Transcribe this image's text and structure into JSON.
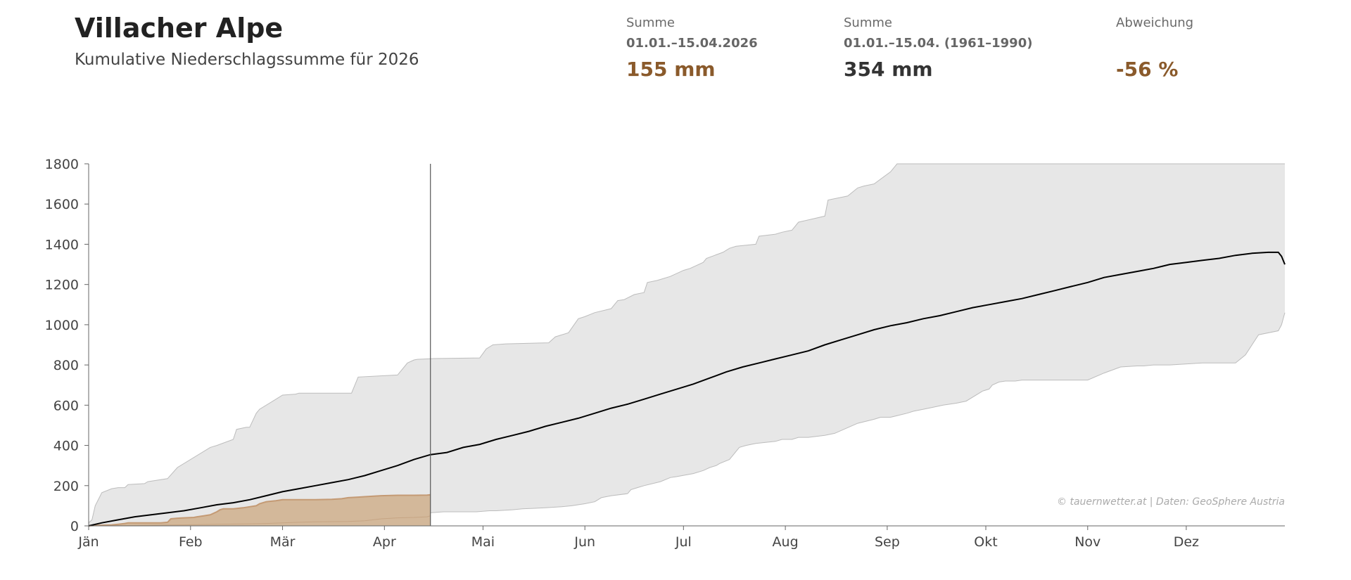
{
  "header": {
    "title": "Villacher Alpe",
    "subtitle": "Kumulative Niederschlagssumme für 2026"
  },
  "stats": {
    "current": {
      "label": "Summe",
      "period": "01.01.–15.04.2026",
      "value": "155 mm",
      "color": "#8a5a2b"
    },
    "normal": {
      "label": "Summe",
      "period": "01.01.–15.04. (1961–1990)",
      "value": "354 mm",
      "color": "#333333"
    },
    "deviation": {
      "label": "Abweichung",
      "period": "",
      "value": "-56 %",
      "color": "#8a5a2b"
    }
  },
  "chart_data": {
    "type": "area",
    "title": "Kumulative Niederschlagssumme für 2026",
    "xlabel": "",
    "ylabel": "",
    "x_unit": "day of year",
    "xlim": [
      1,
      365
    ],
    "ylim": [
      0,
      1800
    ],
    "yticks": [
      0,
      200,
      400,
      600,
      800,
      1000,
      1200,
      1400,
      1600,
      1800
    ],
    "ytick_labels": [
      "0",
      "200",
      "400",
      "600",
      "800",
      "1000",
      "1200",
      "1400",
      "1600",
      "1800"
    ],
    "xtick_days": [
      1,
      32,
      60,
      91,
      121,
      152,
      182,
      213,
      244,
      274,
      305,
      335
    ],
    "xtick_labels": [
      "Jän",
      "Feb",
      "Mär",
      "Apr",
      "Mai",
      "Jun",
      "Jul",
      "Aug",
      "Sep",
      "Okt",
      "Nov",
      "Dez"
    ],
    "current_day": 105,
    "credit": "© tauernwetter.at | Daten: GeoSphere Austria",
    "colors": {
      "range_fill": "#e7e7e7",
      "range_edge": "#bcbcbc",
      "mean_line": "#000000",
      "current_fill": "#d3b89a",
      "current_line": "#c49a74",
      "current_low": "#c6a584",
      "axis": "#666666",
      "marker": "#555555"
    },
    "series": [
      {
        "name": "Maximum 1961–1990",
        "role": "max",
        "x": [
          1,
          2,
          3,
          5,
          8,
          10,
          12,
          13,
          18,
          19,
          25,
          28,
          38,
          40,
          45,
          46,
          49,
          50,
          52,
          53,
          58,
          60,
          64,
          65,
          75,
          81,
          83,
          95,
          96,
          97,
          98,
          100,
          101,
          104,
          106,
          120,
          122,
          124,
          128,
          141,
          143,
          147,
          150,
          152,
          155,
          160,
          162,
          164,
          167,
          170,
          171,
          174,
          178,
          182,
          184,
          188,
          189,
          194,
          196,
          198,
          204,
          205,
          210,
          212,
          215,
          217,
          225,
          226,
          232,
          235,
          237,
          240,
          245,
          247,
          252,
          253,
          255,
          258,
          263,
          268,
          270,
          365
        ],
        "values": [
          15,
          30,
          100,
          165,
          185,
          190,
          190,
          205,
          210,
          220,
          235,
          290,
          390,
          400,
          430,
          480,
          490,
          490,
          560,
          580,
          630,
          650,
          655,
          660,
          660,
          660,
          740,
          750,
          770,
          790,
          810,
          825,
          828,
          830,
          832,
          835,
          880,
          900,
          905,
          910,
          940,
          960,
          1030,
          1040,
          1060,
          1080,
          1120,
          1125,
          1150,
          1160,
          1210,
          1220,
          1240,
          1270,
          1280,
          1310,
          1330,
          1360,
          1380,
          1390,
          1400,
          1440,
          1450,
          1460,
          1470,
          1510,
          1540,
          1620,
          1640,
          1680,
          1690,
          1700,
          1760,
          1800,
          1800,
          1800,
          1800,
          1800,
          1800,
          1800,
          1800,
          1800
        ]
      },
      {
        "name": "Minimum 1961–1990",
        "role": "min",
        "x": [
          1,
          70,
          80,
          82,
          85,
          90,
          95,
          99,
          101,
          102,
          105,
          109,
          119,
          123,
          125,
          130,
          133,
          140,
          145,
          148,
          152,
          155,
          157,
          160,
          165,
          166,
          168,
          170,
          175,
          178,
          180,
          185,
          188,
          190,
          192,
          193,
          196,
          199,
          201,
          204,
          210,
          212,
          215,
          217,
          220,
          225,
          228,
          235,
          240,
          242,
          245,
          250,
          252,
          255,
          258,
          261,
          265,
          268,
          272,
          273,
          275,
          276,
          278,
          280,
          283,
          285,
          290,
          295,
          302,
          305,
          310,
          315,
          320,
          322,
          325,
          330,
          340,
          350,
          353,
          355,
          357,
          363,
          364,
          365
        ],
        "values": [
          0,
          12,
          15,
          30,
          40,
          40,
          40,
          40,
          50,
          55,
          65,
          70,
          70,
          75,
          75,
          80,
          85,
          90,
          95,
          100,
          110,
          120,
          140,
          150,
          160,
          180,
          190,
          200,
          220,
          240,
          245,
          260,
          275,
          290,
          300,
          310,
          330,
          390,
          400,
          410,
          420,
          430,
          430,
          440,
          440,
          450,
          460,
          510,
          530,
          540,
          540,
          560,
          570,
          580,
          590,
          600,
          610,
          620,
          660,
          670,
          680,
          700,
          715,
          720,
          720,
          725,
          725,
          725,
          725,
          725,
          760,
          790,
          795,
          795,
          800,
          800,
          810,
          810,
          850,
          900,
          950,
          970,
          1000,
          1060
        ]
      },
      {
        "name": "Mittel 1961–1990",
        "role": "mean",
        "x": [
          1,
          5,
          10,
          15,
          20,
          25,
          30,
          35,
          40,
          45,
          50,
          55,
          60,
          65,
          70,
          75,
          80,
          85,
          90,
          95,
          100,
          105,
          110,
          115,
          120,
          125,
          130,
          135,
          140,
          145,
          150,
          155,
          160,
          165,
          170,
          175,
          180,
          185,
          190,
          195,
          200,
          205,
          210,
          215,
          220,
          225,
          230,
          235,
          240,
          245,
          250,
          255,
          260,
          265,
          270,
          275,
          280,
          285,
          290,
          295,
          300,
          305,
          310,
          315,
          320,
          325,
          330,
          335,
          340,
          345,
          350,
          355,
          360,
          363,
          364,
          365
        ],
        "values": [
          0,
          15,
          30,
          45,
          55,
          65,
          75,
          90,
          105,
          115,
          130,
          150,
          170,
          185,
          200,
          215,
          230,
          250,
          275,
          300,
          330,
          354,
          365,
          390,
          405,
          430,
          450,
          470,
          495,
          515,
          535,
          560,
          585,
          605,
          630,
          655,
          680,
          705,
          735,
          765,
          790,
          810,
          830,
          850,
          870,
          900,
          925,
          950,
          975,
          995,
          1010,
          1030,
          1045,
          1065,
          1085,
          1100,
          1115,
          1130,
          1150,
          1170,
          1190,
          1210,
          1235,
          1250,
          1265,
          1280,
          1300,
          1310,
          1320,
          1330,
          1345,
          1355,
          1360,
          1360,
          1340,
          1300
        ]
      },
      {
        "name": "2026",
        "role": "current",
        "x": [
          1,
          3,
          8,
          10,
          12,
          13,
          20,
          23,
          25,
          26,
          28,
          30,
          33,
          34,
          36,
          38,
          40,
          41,
          42,
          45,
          48,
          50,
          52,
          53,
          55,
          58,
          60,
          65,
          70,
          75,
          78,
          80,
          83,
          85,
          90,
          95,
          100,
          104,
          105
        ],
        "values": [
          0,
          2,
          5,
          8,
          12,
          15,
          15,
          15,
          18,
          35,
          38,
          40,
          42,
          45,
          50,
          55,
          70,
          80,
          85,
          85,
          90,
          95,
          100,
          110,
          120,
          125,
          130,
          130,
          130,
          132,
          135,
          140,
          143,
          145,
          150,
          152,
          152,
          153,
          155
        ]
      },
      {
        "name": "2026 Tageswerte",
        "role": "current_low",
        "x": [
          1,
          30,
          40,
          50,
          55,
          60,
          65,
          70,
          80,
          85,
          90,
          95,
          100,
          104,
          105
        ],
        "values": [
          0,
          5,
          8,
          10,
          12,
          15,
          18,
          20,
          22,
          25,
          35,
          40,
          42,
          45,
          50
        ]
      }
    ]
  }
}
